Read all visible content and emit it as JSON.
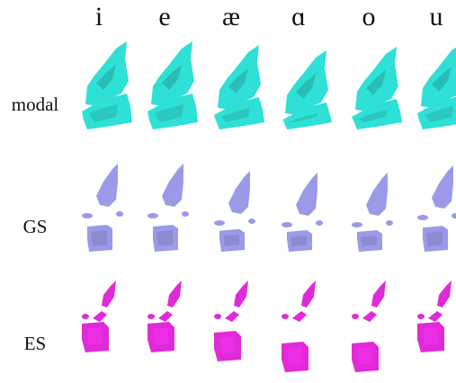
{
  "columns": [
    "i",
    "e",
    "æ",
    "ɑ",
    "o",
    "u"
  ],
  "rows": [
    "modal",
    "GS",
    "ES"
  ],
  "colors": {
    "modal": "#2fe0d6",
    "GS": "#9a9ae8",
    "ES": "#e02ad8"
  }
}
